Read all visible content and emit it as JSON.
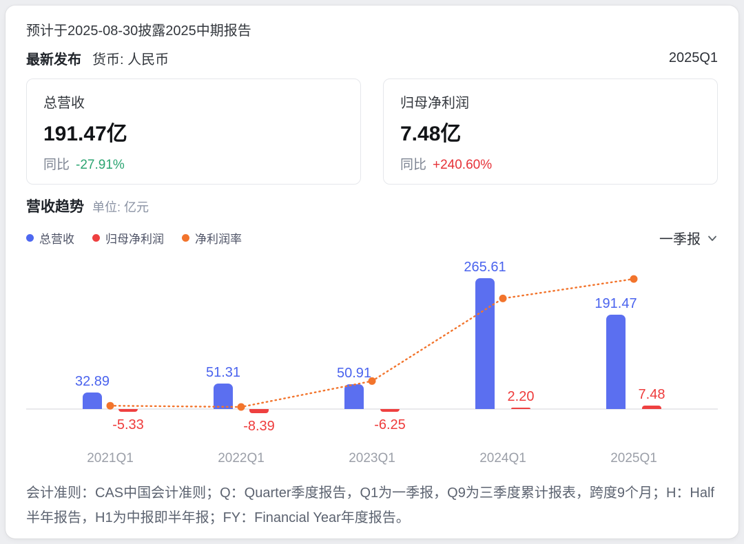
{
  "header": {
    "notice": "预计于2025-08-30披露2025中期报告",
    "latest_label": "最新发布",
    "currency_label": "货币: 人民币",
    "period": "2025Q1"
  },
  "summary_cards": [
    {
      "title": "总营收",
      "value": "191.47亿",
      "yoy_label": "同比",
      "yoy_value": "-27.91%",
      "yoy_color": "#2BA471"
    },
    {
      "title": "归母净利润",
      "value": "7.48亿",
      "yoy_label": "同比",
      "yoy_value": "+240.60%",
      "yoy_color": "#E63238"
    }
  ],
  "trend_section": {
    "title": "营收趋势",
    "unit_label": "单位: 亿元",
    "legend": [
      {
        "label": "总营收",
        "color": "#4E68F0"
      },
      {
        "label": "归母净利润",
        "color": "#EE4040"
      },
      {
        "label": "净利润率",
        "color": "#F2742C"
      }
    ],
    "period_selector": "一季报",
    "chevron_icon": "chevron-down"
  },
  "chart_data": {
    "type": "bar",
    "categories": [
      "2021Q1",
      "2022Q1",
      "2023Q1",
      "2024Q1",
      "2025Q1"
    ],
    "series": [
      {
        "name": "总营收",
        "type": "bar",
        "color": "#5B6FF0",
        "label_color": "#4A63EE",
        "values": [
          32.89,
          51.31,
          50.91,
          265.61,
          191.47
        ]
      },
      {
        "name": "归母净利润",
        "type": "bar",
        "color": "#EE4040",
        "label_color": "#EE3B3B",
        "values": [
          -5.33,
          -8.39,
          -6.25,
          2.2,
          7.48
        ]
      },
      {
        "name": "净利润率",
        "type": "line",
        "color": "#F2742C",
        "values_pct_estimated": [
          -16.2,
          -16.4,
          -12.3,
          0.8,
          3.9
        ]
      }
    ],
    "unit": "亿元",
    "legend_position": "top-left",
    "grid": false
  },
  "footnote": "会计准则：CAS中国会计准则；Q：Quarter季度报告，Q1为一季报，Q9为三季度累计报表，跨度9个月；H：Half半年报告，H1为中报即半年报；FY：Financial Year年度报告。"
}
